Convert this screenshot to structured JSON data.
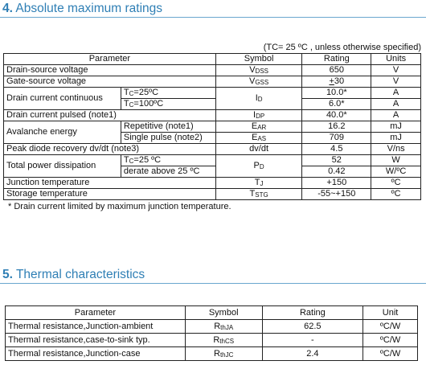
{
  "section4": {
    "number": "4.",
    "title": "Absolute maximum ratings",
    "condition": "(TC= 25 ºC , unless otherwise specified)",
    "headers": [
      "Parameter",
      "Symbol",
      "Rating",
      "Units"
    ],
    "rows": {
      "drain_source_voltage": {
        "param": "Drain-source voltage",
        "sym_main": "V",
        "sym_sub": "DSS",
        "rating": "650",
        "unit": "V"
      },
      "gate_source_voltage": {
        "param": "Gate-source voltage",
        "sym_main": "V",
        "sym_sub": "GSS",
        "rating_pm": "+",
        "rating": "30",
        "unit": "V"
      },
      "drain_current_cont": {
        "param": "Drain current continuous",
        "sym_main": "I",
        "sym_sub": "D",
        "cond1_main": "T",
        "cond1_sub": "C",
        "cond1_rest": "=25ºC",
        "rating1": "10.0*",
        "unit1": "A",
        "cond2_main": "T",
        "cond2_sub": "C",
        "cond2_rest": "=100ºC",
        "rating2": "6.0*",
        "unit2": "A"
      },
      "drain_current_pulsed": {
        "param": "Drain current pulsed (note1)",
        "sym_main": "I",
        "sym_sub": "DP",
        "rating": "40.0*",
        "unit": "A"
      },
      "avalanche_energy": {
        "param": "Avalanche energy",
        "cond1": "Repetitive (note1)",
        "sym1_main": "E",
        "sym1_sub": "AR",
        "rating1": "16.2",
        "unit1": "mJ",
        "cond2": "Single pulse (note2)",
        "sym2_main": "E",
        "sym2_sub": "AS",
        "rating2": "709",
        "unit2": "mJ"
      },
      "peak_diode": {
        "param": "Peak diode recovery dv/dt (note3)",
        "sym": "dv/dt",
        "rating": "4.5",
        "unit": "V/ns"
      },
      "total_power": {
        "param": "Total power dissipation",
        "sym_main": "P",
        "sym_sub": "D",
        "cond1_main": "T",
        "cond1_sub": "C",
        "cond1_rest": "=25 ºC",
        "rating1": "52",
        "unit1": "W",
        "cond2": "derate above 25 ºC",
        "rating2": "0.42",
        "unit2": "W/ºC"
      },
      "junction_temp": {
        "param": "Junction temperature",
        "sym_main": "T",
        "sym_sub": "J",
        "rating": "+150",
        "unit": "ºC"
      },
      "storage_temp": {
        "param": "Storage temperature",
        "sym_main": "T",
        "sym_sub": "STG",
        "rating": "-55~+150",
        "unit": "ºC"
      }
    },
    "footnote": "* Drain current limited by maximum junction temperature."
  },
  "section5": {
    "number": "5.",
    "title": "Thermal characteristics",
    "headers": [
      "Parameter",
      "Symbol",
      "Rating",
      "Unit"
    ],
    "rows": [
      {
        "param": "Thermal resistance,Junction-ambient",
        "sym_main": "R",
        "sym_sub": "thJA",
        "rating": "62.5",
        "unit": "ºC/W"
      },
      {
        "param": "Thermal resistance,case-to-sink typ.",
        "sym_main": "R",
        "sym_sub": "thCS",
        "rating": "-",
        "unit": "ºC/W"
      },
      {
        "param": "Thermal resistance,Junction-case",
        "sym_main": "R",
        "sym_sub": "thJC",
        "rating": "2.4",
        "unit": "ºC/W"
      }
    ]
  }
}
